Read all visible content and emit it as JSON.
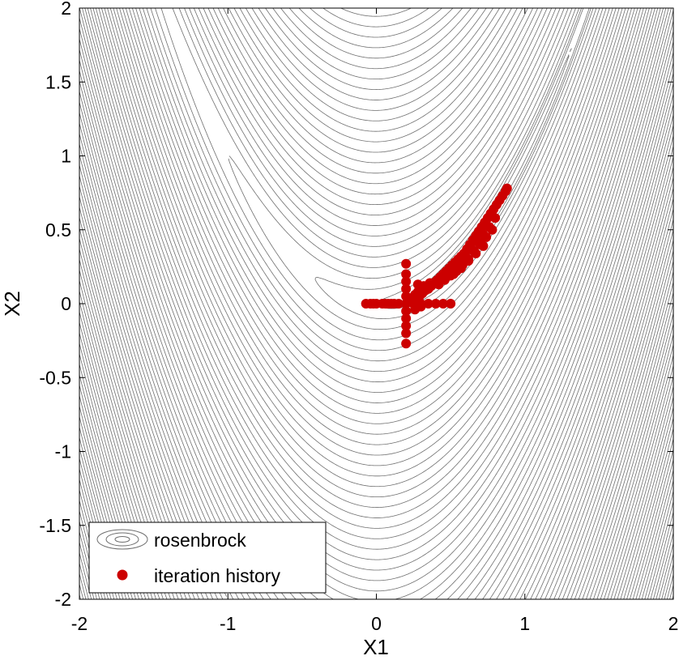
{
  "chart_data": {
    "type": "scatter",
    "title": "",
    "xlabel": "X1",
    "ylabel": "X2",
    "xlim": [
      -2,
      2
    ],
    "ylim": [
      -2,
      2
    ],
    "grid": false,
    "legend_position": "bottom-left",
    "x_ticks": [
      {
        "value": -2,
        "label": "-2"
      },
      {
        "value": -1,
        "label": "-1"
      },
      {
        "value": 0,
        "label": "0"
      },
      {
        "value": 1,
        "label": "1"
      },
      {
        "value": 2,
        "label": "2"
      }
    ],
    "y_ticks": [
      {
        "value": 2,
        "label": "2"
      },
      {
        "value": 1.5,
        "label": "1.5"
      },
      {
        "value": 1,
        "label": "1"
      },
      {
        "value": 0.5,
        "label": "0.5"
      },
      {
        "value": 0,
        "label": "0"
      },
      {
        "value": -0.5,
        "label": "-0.5"
      },
      {
        "value": -1,
        "label": "-1"
      },
      {
        "value": -1.5,
        "label": "-1.5"
      },
      {
        "value": -2,
        "label": "-2"
      }
    ],
    "contour": {
      "name": "rosenbrock",
      "color": "#6e6e6e",
      "levels": [
        0.1,
        0.5,
        1,
        2,
        4,
        7,
        11,
        16,
        22,
        29,
        37,
        46,
        56,
        67,
        79,
        92,
        106,
        121,
        137,
        154,
        172,
        191,
        211,
        232,
        254,
        277,
        301,
        326,
        352,
        379,
        407,
        436,
        466,
        497,
        529,
        562,
        596,
        631,
        667,
        704,
        742,
        781,
        821,
        862,
        904,
        947,
        991,
        1036,
        1082,
        1129,
        1177,
        1226,
        1276,
        1327,
        1379,
        1432,
        1486,
        1541,
        1597,
        1654,
        1712,
        1771,
        1831,
        1892,
        1954,
        2017,
        2081,
        2146,
        2212,
        2279,
        2347,
        2416,
        2486,
        2557,
        2629,
        2702,
        2776,
        2851,
        2927,
        3004,
        3082,
        3161,
        3241,
        3322,
        3404,
        3487,
        3571
      ]
    },
    "series": [
      {
        "name": "iteration history",
        "color": "#cc0000",
        "x": [
          -0.07,
          -0.04,
          -0.02,
          0.0,
          0.04,
          0.06,
          0.08,
          0.1,
          0.12,
          0.15,
          0.2,
          0.25,
          0.3,
          0.35,
          0.4,
          0.45,
          0.5,
          0.2,
          0.2,
          0.2,
          0.2,
          0.2,
          0.2,
          0.2,
          0.2,
          0.2,
          0.2,
          0.22,
          0.24,
          0.26,
          0.28,
          0.3,
          0.25,
          0.27,
          0.29,
          0.31,
          0.33,
          0.26,
          0.3,
          0.34,
          0.28,
          0.32,
          0.36,
          0.35,
          0.37,
          0.39,
          0.41,
          0.43,
          0.45,
          0.47,
          0.49,
          0.51,
          0.53,
          0.55,
          0.57,
          0.59,
          0.61,
          0.63,
          0.65,
          0.67,
          0.69,
          0.71,
          0.73,
          0.75,
          0.77,
          0.79,
          0.81,
          0.83,
          0.85,
          0.87,
          0.88,
          0.4,
          0.44,
          0.48,
          0.52,
          0.56,
          0.6,
          0.64,
          0.68,
          0.72,
          0.76,
          0.8,
          0.42,
          0.46,
          0.5,
          0.54,
          0.58,
          0.62,
          0.66,
          0.7,
          0.74,
          0.78,
          0.5,
          0.55,
          0.6,
          0.65,
          0.7,
          0.52,
          0.57,
          0.62,
          0.67,
          0.72
        ],
        "y": [
          0.0,
          0.0,
          0.0,
          0.0,
          0.0,
          0.0,
          0.0,
          0.0,
          0.0,
          0.0,
          0.0,
          0.0,
          0.0,
          0.0,
          0.0,
          0.0,
          0.0,
          -0.27,
          -0.2,
          -0.15,
          -0.1,
          -0.05,
          0.05,
          0.1,
          0.15,
          0.2,
          0.27,
          0.02,
          0.04,
          0.06,
          0.08,
          0.1,
          0.0,
          0.03,
          0.05,
          0.07,
          0.09,
          -0.04,
          -0.02,
          0.11,
          0.13,
          0.12,
          0.14,
          0.1,
          0.12,
          0.14,
          0.16,
          0.18,
          0.2,
          0.22,
          0.24,
          0.26,
          0.28,
          0.3,
          0.32,
          0.34,
          0.37,
          0.4,
          0.43,
          0.46,
          0.49,
          0.52,
          0.55,
          0.58,
          0.61,
          0.64,
          0.67,
          0.7,
          0.73,
          0.76,
          0.78,
          0.15,
          0.17,
          0.2,
          0.23,
          0.27,
          0.32,
          0.37,
          0.42,
          0.47,
          0.52,
          0.58,
          0.13,
          0.16,
          0.19,
          0.22,
          0.26,
          0.3,
          0.35,
          0.4,
          0.45,
          0.5,
          0.22,
          0.26,
          0.31,
          0.36,
          0.41,
          0.2,
          0.24,
          0.29,
          0.34,
          0.39
        ]
      }
    ]
  }
}
